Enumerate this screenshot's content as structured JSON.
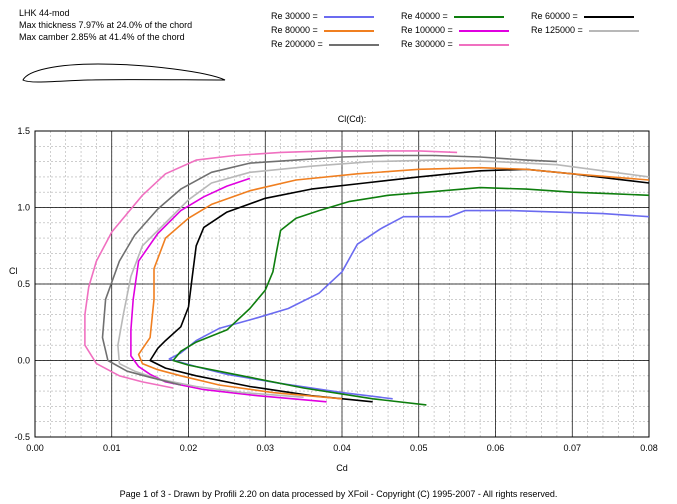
{
  "header": {
    "airfoil_name": "LHK 44-mod",
    "max_thickness": "Max thickness 7.97% at 24.0% of the chord",
    "max_camber": "Max camber 2.85% at 41.4% of the chord"
  },
  "footer": "Page 1 of 3   -   Drawn by Profili 2.20 on data processed by  XFoil - Copyright (C) 1995-2007 - All rights reserved.",
  "chart_data": {
    "type": "line",
    "title": "Cl(Cd):",
    "xlabel": "Cd",
    "ylabel": "Cl",
    "xlim": [
      0.0,
      0.08
    ],
    "ylim": [
      -0.5,
      1.5
    ],
    "xticks": [
      "0.00",
      "0.01",
      "0.02",
      "0.03",
      "0.04",
      "0.05",
      "0.06",
      "0.07",
      "0.08"
    ],
    "yticks": [
      "-0.5",
      "0.0",
      "0.5",
      "1.0",
      "1.5"
    ],
    "grid": true,
    "legend_position": "top",
    "series": [
      {
        "name": "Re 30000 =",
        "color": "#6b6bf0",
        "points": [
          [
            0.0466,
            -0.25
          ],
          [
            0.04,
            -0.21
          ],
          [
            0.032,
            -0.15
          ],
          [
            0.025,
            -0.09
          ],
          [
            0.021,
            -0.04
          ],
          [
            0.0175,
            0.01
          ],
          [
            0.019,
            0.05
          ],
          [
            0.021,
            0.13
          ],
          [
            0.024,
            0.21
          ],
          [
            0.029,
            0.28
          ],
          [
            0.033,
            0.34
          ],
          [
            0.037,
            0.44
          ],
          [
            0.04,
            0.58
          ],
          [
            0.042,
            0.76
          ],
          [
            0.045,
            0.86
          ],
          [
            0.048,
            0.94
          ],
          [
            0.051,
            0.94
          ],
          [
            0.054,
            0.94
          ],
          [
            0.056,
            0.98
          ],
          [
            0.062,
            0.98
          ],
          [
            0.068,
            0.97
          ],
          [
            0.074,
            0.96
          ],
          [
            0.08,
            0.94
          ]
        ]
      },
      {
        "name": "Re 40000 =",
        "color": "#0e7e0e",
        "points": [
          [
            0.051,
            -0.29
          ],
          [
            0.044,
            -0.25
          ],
          [
            0.035,
            -0.18
          ],
          [
            0.026,
            -0.09
          ],
          [
            0.02,
            -0.03
          ],
          [
            0.018,
            0.0
          ],
          [
            0.019,
            0.06
          ],
          [
            0.021,
            0.12
          ],
          [
            0.025,
            0.2
          ],
          [
            0.028,
            0.34
          ],
          [
            0.03,
            0.46
          ],
          [
            0.031,
            0.58
          ],
          [
            0.0315,
            0.72
          ],
          [
            0.032,
            0.85
          ],
          [
            0.034,
            0.93
          ],
          [
            0.037,
            0.98
          ],
          [
            0.041,
            1.04
          ],
          [
            0.046,
            1.08
          ],
          [
            0.051,
            1.1
          ],
          [
            0.058,
            1.13
          ],
          [
            0.064,
            1.12
          ],
          [
            0.07,
            1.1
          ],
          [
            0.075,
            1.09
          ],
          [
            0.08,
            1.08
          ]
        ]
      },
      {
        "name": "Re 60000 =",
        "color": "#000000",
        "points": [
          [
            0.044,
            -0.27
          ],
          [
            0.036,
            -0.23
          ],
          [
            0.028,
            -0.17
          ],
          [
            0.021,
            -0.1
          ],
          [
            0.017,
            -0.05
          ],
          [
            0.015,
            0.0
          ],
          [
            0.016,
            0.08
          ],
          [
            0.017,
            0.13
          ],
          [
            0.019,
            0.22
          ],
          [
            0.02,
            0.35
          ],
          [
            0.0205,
            0.55
          ],
          [
            0.021,
            0.75
          ],
          [
            0.022,
            0.87
          ],
          [
            0.025,
            0.97
          ],
          [
            0.03,
            1.06
          ],
          [
            0.036,
            1.12
          ],
          [
            0.043,
            1.16
          ],
          [
            0.05,
            1.2
          ],
          [
            0.058,
            1.24
          ],
          [
            0.064,
            1.25
          ],
          [
            0.07,
            1.22
          ],
          [
            0.075,
            1.19
          ],
          [
            0.08,
            1.16
          ]
        ]
      },
      {
        "name": "Re 80000 =",
        "color": "#f07f20",
        "points": [
          [
            0.04,
            -0.25
          ],
          [
            0.031,
            -0.21
          ],
          [
            0.024,
            -0.16
          ],
          [
            0.019,
            -0.1
          ],
          [
            0.016,
            -0.06
          ],
          [
            0.014,
            -0.02
          ],
          [
            0.0135,
            0.04
          ],
          [
            0.015,
            0.15
          ],
          [
            0.0155,
            0.4
          ],
          [
            0.0155,
            0.6
          ],
          [
            0.017,
            0.8
          ],
          [
            0.02,
            0.93
          ],
          [
            0.023,
            1.02
          ],
          [
            0.028,
            1.11
          ],
          [
            0.034,
            1.18
          ],
          [
            0.042,
            1.22
          ],
          [
            0.05,
            1.25
          ],
          [
            0.058,
            1.26
          ],
          [
            0.064,
            1.25
          ],
          [
            0.07,
            1.22
          ],
          [
            0.075,
            1.2
          ],
          [
            0.08,
            1.18
          ]
        ]
      },
      {
        "name": "Re 100000 =",
        "color": "#e000e0",
        "points": [
          [
            0.038,
            -0.27
          ],
          [
            0.029,
            -0.23
          ],
          [
            0.022,
            -0.19
          ],
          [
            0.017,
            -0.14
          ],
          [
            0.015,
            -0.09
          ],
          [
            0.0135,
            -0.04
          ],
          [
            0.0125,
            0.03
          ],
          [
            0.0125,
            0.2
          ],
          [
            0.0128,
            0.4
          ],
          [
            0.0135,
            0.65
          ],
          [
            0.016,
            0.83
          ],
          [
            0.019,
            0.98
          ],
          [
            0.022,
            1.07
          ],
          [
            0.025,
            1.14
          ],
          [
            0.028,
            1.19
          ]
        ]
      },
      {
        "name": "Re 125000 =",
        "color": "#b8b8b8",
        "points": [
          [
            0.035,
            -0.24
          ],
          [
            0.027,
            -0.21
          ],
          [
            0.021,
            -0.17
          ],
          [
            0.016,
            -0.12
          ],
          [
            0.013,
            -0.07
          ],
          [
            0.011,
            -0.02
          ],
          [
            0.0108,
            0.1
          ],
          [
            0.0115,
            0.3
          ],
          [
            0.0125,
            0.55
          ],
          [
            0.014,
            0.75
          ],
          [
            0.017,
            0.9
          ],
          [
            0.02,
            1.05
          ],
          [
            0.023,
            1.16
          ],
          [
            0.028,
            1.23
          ],
          [
            0.036,
            1.27
          ],
          [
            0.044,
            1.3
          ],
          [
            0.052,
            1.31
          ],
          [
            0.06,
            1.3
          ],
          [
            0.068,
            1.28
          ],
          [
            0.074,
            1.24
          ],
          [
            0.08,
            1.2
          ]
        ]
      },
      {
        "name": "Re 200000 =",
        "color": "#707070",
        "points": [
          [
            0.019,
            -0.16
          ],
          [
            0.015,
            -0.11
          ],
          [
            0.012,
            -0.07
          ],
          [
            0.0095,
            0.0
          ],
          [
            0.0088,
            0.15
          ],
          [
            0.0092,
            0.4
          ],
          [
            0.011,
            0.65
          ],
          [
            0.013,
            0.82
          ],
          [
            0.016,
            0.99
          ],
          [
            0.019,
            1.12
          ],
          [
            0.023,
            1.23
          ],
          [
            0.028,
            1.29
          ],
          [
            0.034,
            1.31
          ],
          [
            0.04,
            1.33
          ],
          [
            0.046,
            1.34
          ],
          [
            0.052,
            1.34
          ],
          [
            0.058,
            1.33
          ],
          [
            0.064,
            1.31
          ],
          [
            0.068,
            1.3
          ]
        ]
      },
      {
        "name": "Re 300000 =",
        "color": "#f070c0",
        "points": [
          [
            0.018,
            -0.18
          ],
          [
            0.014,
            -0.14
          ],
          [
            0.011,
            -0.1
          ],
          [
            0.008,
            -0.02
          ],
          [
            0.0065,
            0.1
          ],
          [
            0.0065,
            0.3
          ],
          [
            0.007,
            0.48
          ],
          [
            0.008,
            0.65
          ],
          [
            0.01,
            0.84
          ],
          [
            0.012,
            0.96
          ],
          [
            0.014,
            1.08
          ],
          [
            0.017,
            1.22
          ],
          [
            0.021,
            1.31
          ],
          [
            0.026,
            1.34
          ],
          [
            0.032,
            1.36
          ],
          [
            0.038,
            1.37
          ],
          [
            0.044,
            1.37
          ],
          [
            0.05,
            1.37
          ],
          [
            0.055,
            1.36
          ]
        ]
      }
    ]
  }
}
